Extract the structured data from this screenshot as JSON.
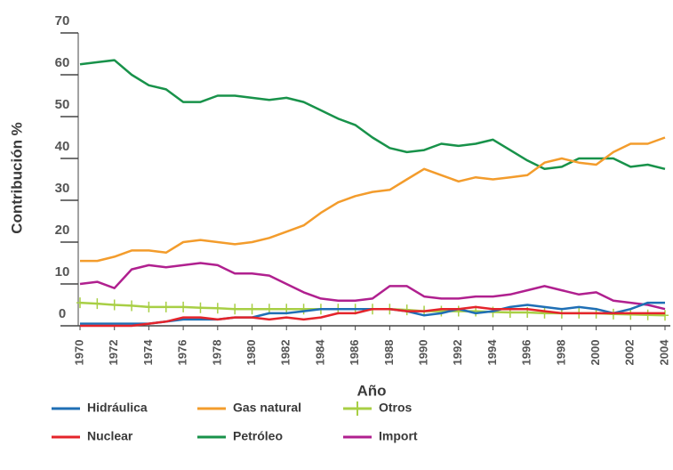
{
  "chart_data": {
    "type": "line",
    "ylabel": "Contribución %",
    "xlabel": "Año",
    "x": [
      1970,
      1971,
      1972,
      1973,
      1974,
      1975,
      1976,
      1977,
      1978,
      1979,
      1980,
      1981,
      1982,
      1983,
      1984,
      1985,
      1986,
      1987,
      1988,
      1989,
      1990,
      1991,
      1992,
      1993,
      1994,
      1995,
      1996,
      1997,
      1998,
      1999,
      2000,
      2001,
      2002,
      2003,
      2004
    ],
    "xlim": [
      1970,
      2004
    ],
    "xticks": [
      1970,
      1972,
      1974,
      1976,
      1978,
      1980,
      1982,
      1984,
      1986,
      1988,
      1990,
      1992,
      1994,
      1996,
      1998,
      2000,
      2002,
      2004
    ],
    "ylim": [
      0,
      70
    ],
    "yticks": [
      0,
      10,
      20,
      30,
      40,
      50,
      60,
      70
    ],
    "series": [
      {
        "name": "Hidráulica",
        "color": "#1f6fb5",
        "values": [
          0.5,
          0.5,
          0.5,
          0.5,
          0.5,
          1,
          1.5,
          1.5,
          1.5,
          2,
          2,
          3,
          3,
          3.5,
          4,
          4,
          4,
          4,
          4,
          3.5,
          2.5,
          3,
          4,
          3,
          3.5,
          4.5,
          5,
          4.5,
          4,
          4.5,
          4,
          3,
          4,
          5.5,
          5.5
        ]
      },
      {
        "name": "Gas natural",
        "color": "#f39c2c",
        "values": [
          15.5,
          15.5,
          16.5,
          18,
          18,
          17.5,
          20,
          20.5,
          20,
          19.5,
          20,
          21,
          22.5,
          24,
          27,
          29.5,
          31,
          32,
          32.5,
          35,
          37.5,
          36,
          34.5,
          35.5,
          35,
          35.5,
          36,
          39,
          40,
          39,
          38.5,
          41.5,
          43.5,
          43.5,
          45
        ]
      },
      {
        "name": "Otros",
        "color": "#a8cf45",
        "marker": "plus",
        "values": [
          5.5,
          5.3,
          5,
          4.8,
          4.5,
          4.5,
          4.5,
          4.3,
          4.2,
          4,
          4,
          4,
          4,
          4,
          4,
          4,
          4,
          4,
          4,
          3.8,
          3.5,
          3.5,
          3.5,
          3.5,
          3.3,
          3.2,
          3.2,
          3,
          3,
          3,
          3,
          2.8,
          2.7,
          2.6,
          2.5
        ]
      },
      {
        "name": "Nuclear",
        "color": "#e4242b",
        "values": [
          0,
          0,
          0,
          0,
          0.5,
          1,
          2,
          2,
          1.5,
          2,
          2,
          1.5,
          2,
          1.5,
          2,
          3,
          3,
          4,
          4,
          3.5,
          3.5,
          4,
          4,
          4.5,
          4,
          4,
          4,
          3.5,
          3,
          3,
          3,
          3,
          3,
          3,
          3
        ]
      },
      {
        "name": "Petróleo",
        "color": "#18924a",
        "values": [
          62.5,
          63,
          63.5,
          60,
          57.5,
          56.5,
          53.5,
          53.5,
          55,
          55,
          54.5,
          54,
          54.5,
          53.5,
          51.5,
          49.5,
          48,
          45,
          42.5,
          41.5,
          42,
          43.5,
          43,
          43.5,
          44.5,
          42,
          39.5,
          37.5,
          38,
          40,
          40,
          40,
          38,
          38.5,
          37.5
        ]
      },
      {
        "name": "Import",
        "color": "#b0208f",
        "values": [
          10,
          10.5,
          9,
          13.5,
          14.5,
          14,
          14.5,
          15,
          14.5,
          12.5,
          12.5,
          12,
          10,
          8,
          6.5,
          6,
          6,
          6.5,
          9.5,
          9.5,
          7,
          6.5,
          6.5,
          7,
          7,
          7.5,
          8.5,
          9.5,
          8.5,
          7.5,
          8,
          6,
          5.5,
          5,
          4
        ]
      }
    ]
  }
}
